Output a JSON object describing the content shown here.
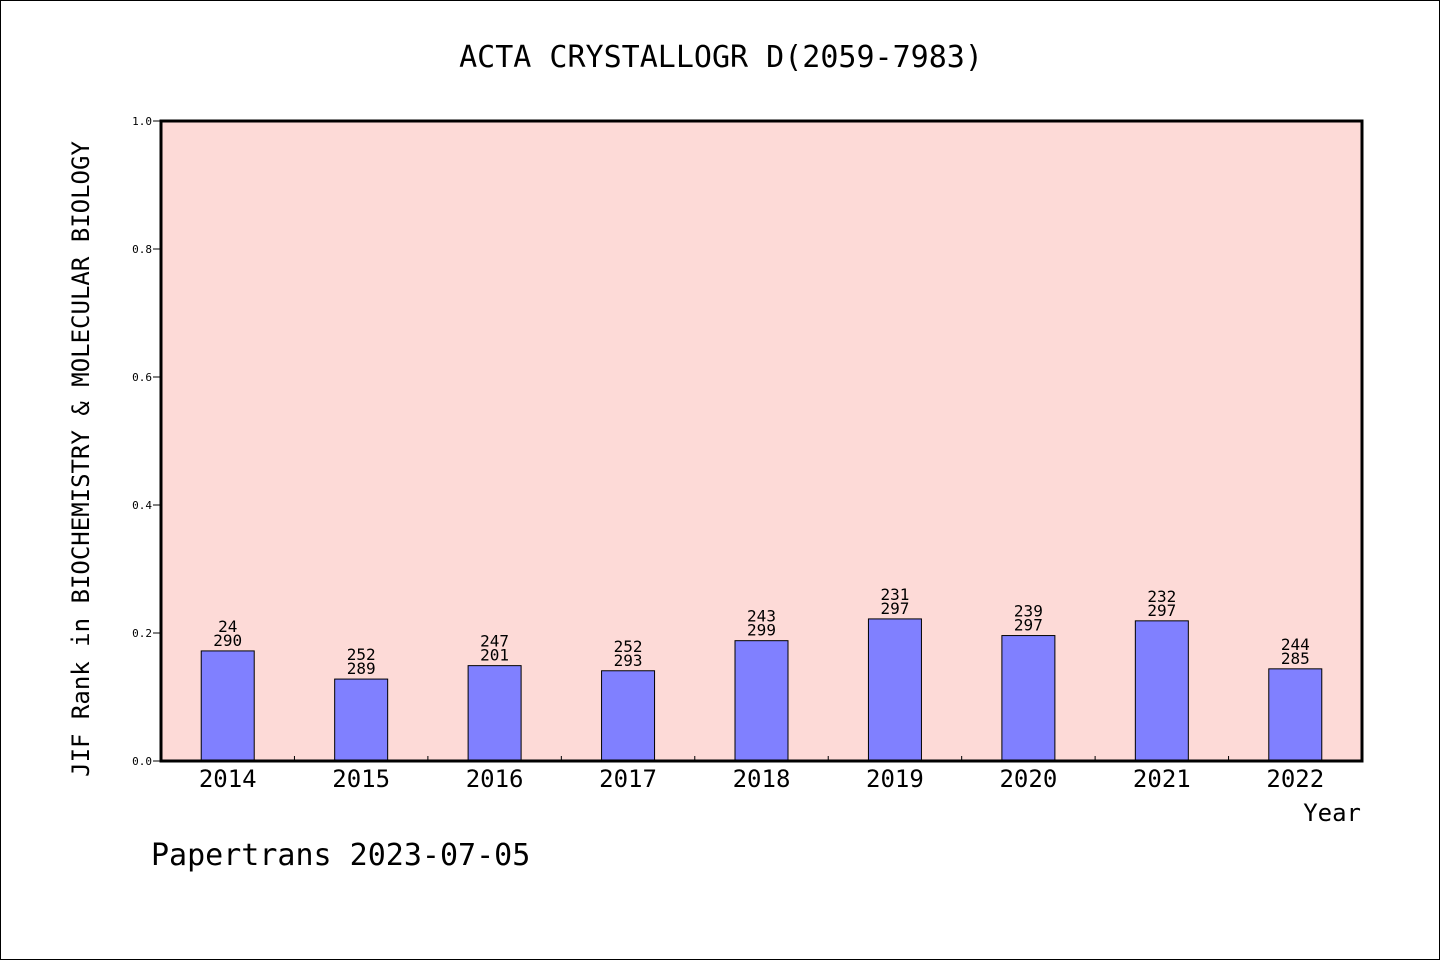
{
  "chart_data": {
    "type": "bar",
    "title": "ACTA CRYSTALLOGR D(2059-7983)",
    "xlabel": "Year",
    "ylabel": "JIF Rank in BIOCHEMISTRY & MOLECULAR BIOLOGY",
    "ylim": [
      0,
      1.0
    ],
    "yticks": [
      "0.0",
      "0.2",
      "0.4",
      "0.6",
      "0.8",
      "1.0"
    ],
    "categories": [
      "2014",
      "2015",
      "2016",
      "2017",
      "2018",
      "2019",
      "2020",
      "2021",
      "2022"
    ],
    "values": [
      0.172,
      0.128,
      0.149,
      0.141,
      0.188,
      0.222,
      0.196,
      0.219,
      0.144
    ],
    "labels_top": [
      "24",
      "252",
      "247",
      "252",
      "243",
      "231",
      "239",
      "232",
      "244"
    ],
    "labels_bottom": [
      "290",
      "289",
      "201",
      "293",
      "299",
      "297",
      "297",
      "297",
      "285"
    ],
    "grid": false,
    "colors": {
      "plot_bg": "#fddad7",
      "bar": "#8080ff",
      "bar_edge": "#000000"
    }
  },
  "footer": "Papertrans 2023-07-05"
}
